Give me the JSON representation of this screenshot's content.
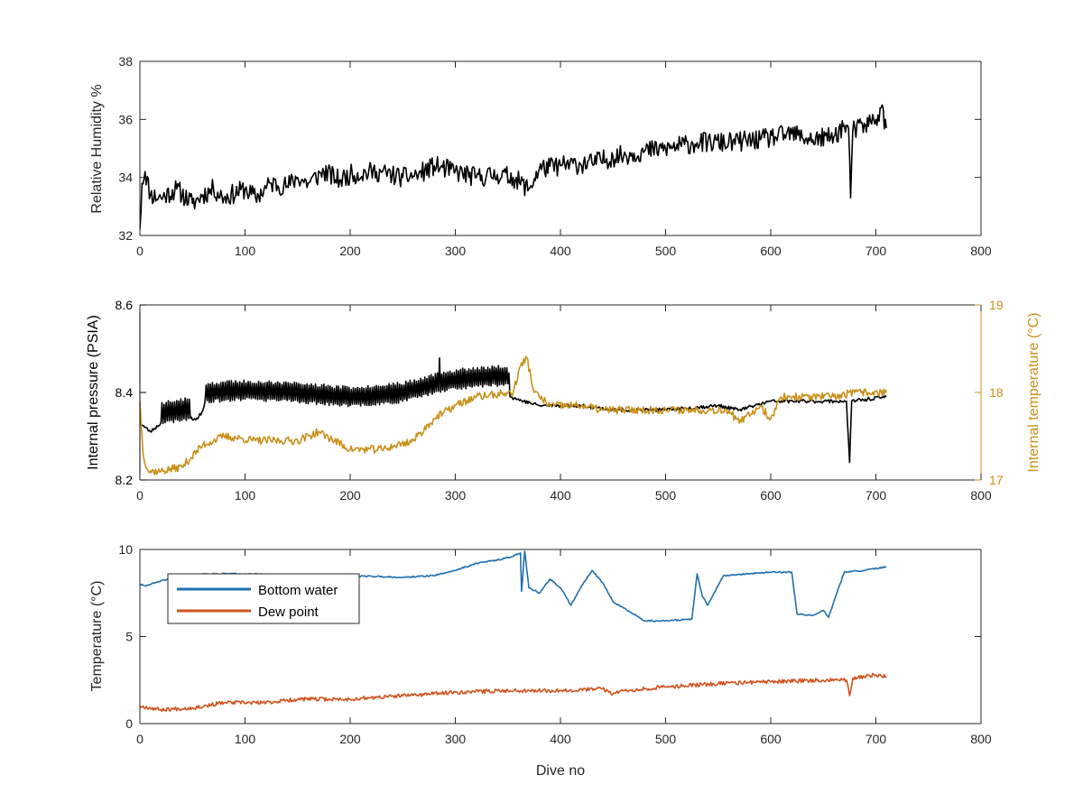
{
  "colors": {
    "humidity": "#000000",
    "pressure": "#000000",
    "internal_temp": "#c8901a",
    "bottom_water": "#1f70b0",
    "dew_point": "#d0521c",
    "axis": "#262626",
    "tick_label": "#262626"
  },
  "chart_data": [
    {
      "type": "line",
      "title": "",
      "xlabel": "",
      "ylabel": "Relative Humidity %",
      "xlim": [
        0,
        800
      ],
      "ylim": [
        32,
        38
      ],
      "xticks": [
        0,
        100,
        200,
        300,
        400,
        500,
        600,
        700,
        800
      ],
      "yticks": [
        32,
        34,
        36,
        38
      ],
      "grid": false,
      "series": [
        {
          "color": "#000000",
          "noise": 0.35,
          "seed": 11,
          "points": [
            [
              0,
              32.2
            ],
            [
              2,
              33.8
            ],
            [
              5,
              34.2
            ],
            [
              10,
              33.4
            ],
            [
              20,
              33.3
            ],
            [
              35,
              33.6
            ],
            [
              50,
              33.1
            ],
            [
              60,
              33.4
            ],
            [
              70,
              33.6
            ],
            [
              80,
              33.3
            ],
            [
              100,
              33.6
            ],
            [
              110,
              33.3
            ],
            [
              125,
              33.8
            ],
            [
              140,
              33.7
            ],
            [
              150,
              34.0
            ],
            [
              160,
              33.8
            ],
            [
              175,
              34.2
            ],
            [
              190,
              33.9
            ],
            [
              200,
              34.1
            ],
            [
              225,
              34.2
            ],
            [
              250,
              34.0
            ],
            [
              265,
              34.1
            ],
            [
              280,
              34.4
            ],
            [
              300,
              34.2
            ],
            [
              320,
              34.0
            ],
            [
              340,
              34.1
            ],
            [
              355,
              34.0
            ],
            [
              370,
              33.6
            ],
            [
              380,
              34.3
            ],
            [
              400,
              34.4
            ],
            [
              430,
              34.5
            ],
            [
              450,
              34.7
            ],
            [
              480,
              34.9
            ],
            [
              500,
              35.0
            ],
            [
              530,
              35.2
            ],
            [
              560,
              35.2
            ],
            [
              590,
              35.3
            ],
            [
              620,
              35.5
            ],
            [
              640,
              35.3
            ],
            [
              660,
              35.4
            ],
            [
              670,
              35.8
            ],
            [
              674,
              35.7
            ],
            [
              676,
              33.3
            ],
            [
              678,
              35.6
            ],
            [
              690,
              35.8
            ],
            [
              700,
              36.0
            ],
            [
              705,
              36.4
            ],
            [
              710,
              35.7
            ]
          ]
        }
      ]
    },
    {
      "type": "line",
      "title": "",
      "xlabel": "",
      "ylabel": "Internal pressure (PSIA)",
      "y2label": "Internal temperature (°C)",
      "xlim": [
        0,
        800
      ],
      "ylim": [
        8.2,
        8.6
      ],
      "y2lim": [
        17,
        19
      ],
      "xticks": [
        0,
        100,
        200,
        300,
        400,
        500,
        600,
        700,
        800
      ],
      "yticks": [
        8.2,
        8.4,
        8.6
      ],
      "y2ticks": [
        17,
        18,
        19
      ],
      "grid": false,
      "series": [
        {
          "axis": "left",
          "color": "#000000",
          "noise": 0.004,
          "seed": 23,
          "points": [
            [
              0,
              8.33
            ],
            [
              5,
              8.32
            ],
            [
              10,
              8.31
            ],
            [
              20,
              8.33
            ],
            [
              45,
              8.34
            ],
            [
              55,
              8.34
            ],
            [
              60,
              8.36
            ],
            [
              62,
              8.38
            ],
            [
              100,
              8.385
            ],
            [
              150,
              8.38
            ],
            [
              200,
              8.37
            ],
            [
              250,
              8.38
            ],
            [
              280,
              8.4
            ],
            [
              300,
              8.41
            ],
            [
              350,
              8.42
            ],
            [
              352,
              8.39
            ],
            [
              365,
              8.38
            ],
            [
              380,
              8.37
            ],
            [
              420,
              8.37
            ],
            [
              450,
              8.36
            ],
            [
              500,
              8.36
            ],
            [
              550,
              8.37
            ],
            [
              570,
              8.36
            ],
            [
              600,
              8.38
            ],
            [
              650,
              8.38
            ],
            [
              672,
              8.38
            ],
            [
              675,
              8.24
            ],
            [
              677,
              8.38
            ],
            [
              710,
              8.39
            ]
          ],
          "osc": [
            [
              20,
              48,
              0.045
            ],
            [
              62,
              240,
              0.04
            ],
            [
              240,
              285,
              0.04
            ],
            [
              285,
              352,
              0.04
            ]
          ]
        },
        {
          "axis": "right",
          "color": "#c8901a",
          "noise": 0.045,
          "seed": 37,
          "points": [
            [
              0,
              17.9
            ],
            [
              3,
              17.3
            ],
            [
              8,
              17.1
            ],
            [
              20,
              17.1
            ],
            [
              40,
              17.15
            ],
            [
              60,
              17.4
            ],
            [
              80,
              17.5
            ],
            [
              110,
              17.45
            ],
            [
              150,
              17.45
            ],
            [
              170,
              17.55
            ],
            [
              200,
              17.35
            ],
            [
              230,
              17.35
            ],
            [
              260,
              17.45
            ],
            [
              280,
              17.7
            ],
            [
              300,
              17.85
            ],
            [
              320,
              17.95
            ],
            [
              355,
              18.0
            ],
            [
              362,
              18.3
            ],
            [
              368,
              18.4
            ],
            [
              375,
              18.0
            ],
            [
              390,
              17.85
            ],
            [
              420,
              17.85
            ],
            [
              440,
              17.8
            ],
            [
              460,
              17.8
            ],
            [
              500,
              17.8
            ],
            [
              530,
              17.8
            ],
            [
              560,
              17.8
            ],
            [
              570,
              17.65
            ],
            [
              590,
              17.85
            ],
            [
              600,
              17.7
            ],
            [
              610,
              17.95
            ],
            [
              640,
              17.95
            ],
            [
              660,
              17.95
            ],
            [
              680,
              18.0
            ],
            [
              710,
              18.0
            ]
          ]
        }
      ]
    },
    {
      "type": "line",
      "title": "",
      "xlabel": "Dive no",
      "ylabel": "Temperature (°C)",
      "xlim": [
        0,
        800
      ],
      "ylim": [
        0,
        10
      ],
      "xticks": [
        0,
        100,
        200,
        300,
        400,
        500,
        600,
        700,
        800
      ],
      "yticks": [
        0,
        5,
        10
      ],
      "grid": false,
      "legend": "top-left",
      "series": [
        {
          "name": "Bottom water",
          "color": "#1f70b0",
          "noise": 0.04,
          "seed": 51,
          "points": [
            [
              0,
              8.0
            ],
            [
              5,
              7.9
            ],
            [
              20,
              8.2
            ],
            [
              40,
              8.4
            ],
            [
              60,
              8.6
            ],
            [
              100,
              8.6
            ],
            [
              150,
              8.5
            ],
            [
              200,
              8.5
            ],
            [
              250,
              8.4
            ],
            [
              280,
              8.5
            ],
            [
              300,
              8.8
            ],
            [
              320,
              9.2
            ],
            [
              340,
              9.4
            ],
            [
              355,
              9.6
            ],
            [
              362,
              9.8
            ],
            [
              363,
              7.6
            ],
            [
              366,
              9.9
            ],
            [
              370,
              7.8
            ],
            [
              380,
              7.5
            ],
            [
              390,
              8.3
            ],
            [
              400,
              7.8
            ],
            [
              410,
              6.8
            ],
            [
              420,
              7.9
            ],
            [
              430,
              8.8
            ],
            [
              440,
              8.1
            ],
            [
              450,
              7.0
            ],
            [
              480,
              5.9
            ],
            [
              500,
              5.9
            ],
            [
              525,
              6.0
            ],
            [
              530,
              8.6
            ],
            [
              535,
              7.3
            ],
            [
              540,
              6.8
            ],
            [
              555,
              8.5
            ],
            [
              600,
              8.7
            ],
            [
              620,
              8.7
            ],
            [
              625,
              6.3
            ],
            [
              640,
              6.2
            ],
            [
              650,
              6.5
            ],
            [
              655,
              6.1
            ],
            [
              660,
              7.0
            ],
            [
              670,
              8.7
            ],
            [
              690,
              8.8
            ],
            [
              710,
              9.0
            ]
          ]
        },
        {
          "name": "Dew point",
          "color": "#d0521c",
          "noise": 0.11,
          "seed": 67,
          "points": [
            [
              0,
              1.0
            ],
            [
              20,
              0.8
            ],
            [
              50,
              0.9
            ],
            [
              80,
              1.2
            ],
            [
              120,
              1.2
            ],
            [
              150,
              1.4
            ],
            [
              200,
              1.4
            ],
            [
              250,
              1.6
            ],
            [
              300,
              1.8
            ],
            [
              350,
              1.9
            ],
            [
              400,
              1.9
            ],
            [
              440,
              2.0
            ],
            [
              450,
              1.7
            ],
            [
              460,
              1.9
            ],
            [
              500,
              2.1
            ],
            [
              550,
              2.3
            ],
            [
              600,
              2.4
            ],
            [
              650,
              2.5
            ],
            [
              672,
              2.5
            ],
            [
              675,
              1.6
            ],
            [
              678,
              2.6
            ],
            [
              700,
              2.8
            ],
            [
              710,
              2.7
            ]
          ]
        }
      ]
    }
  ]
}
